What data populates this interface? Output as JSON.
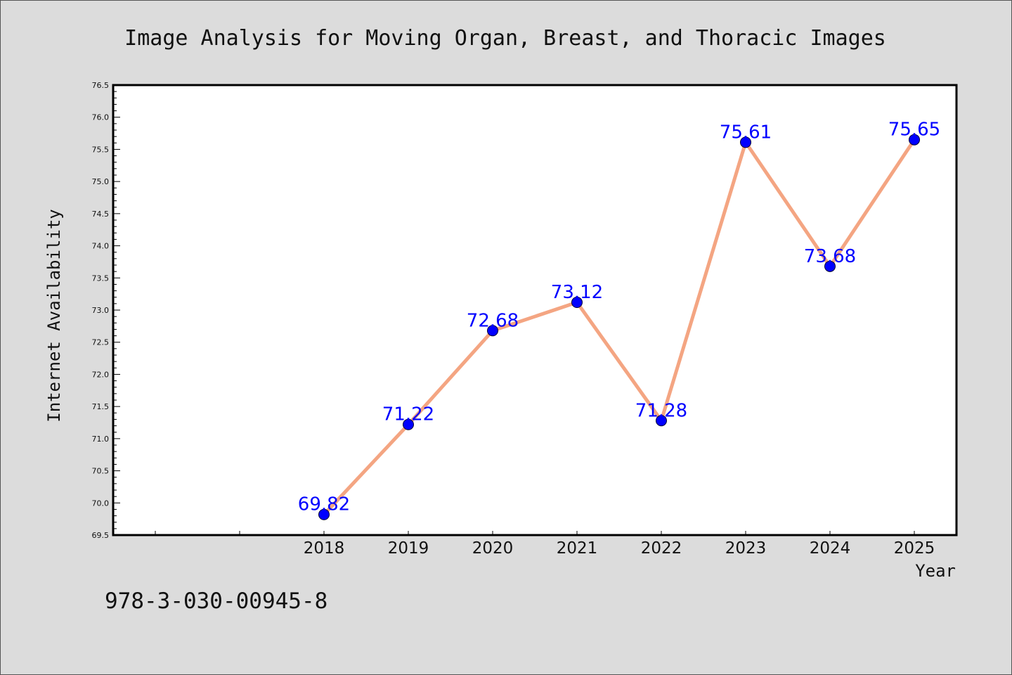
{
  "chart_data": {
    "type": "line",
    "title": "Image Analysis for Moving Organ, Breast, and Thoracic Images",
    "xlabel": "Year",
    "ylabel": "Internet Availability",
    "x": [
      "2018",
      "2019",
      "2020",
      "2021",
      "2022",
      "2023",
      "2024",
      "2025"
    ],
    "series": [
      {
        "values": [
          69.82,
          71.22,
          72.68,
          73.12,
          71.28,
          75.61,
          73.68,
          75.65
        ],
        "labels": [
          "69.82",
          "71.22",
          "72.68",
          "73.12",
          "71.28",
          "75.61",
          "73.68",
          "75.65"
        ]
      }
    ],
    "ylim": [
      69.5,
      76.5
    ],
    "yticks": [
      "69.5",
      "70.0",
      "70.5",
      "71.0",
      "71.5",
      "72.0",
      "72.5",
      "73.0",
      "73.5",
      "74.0",
      "74.5",
      "75.0",
      "75.5",
      "76.0",
      "76.5"
    ],
    "grid": false,
    "legend": "none",
    "colors": {
      "line": "#f4a582",
      "marker": "#0000ff",
      "labels": "#0000ff",
      "background": "#dcdcdc",
      "plot_area": "#ffffff"
    }
  },
  "footer": {
    "text": "978-3-030-00945-8"
  }
}
